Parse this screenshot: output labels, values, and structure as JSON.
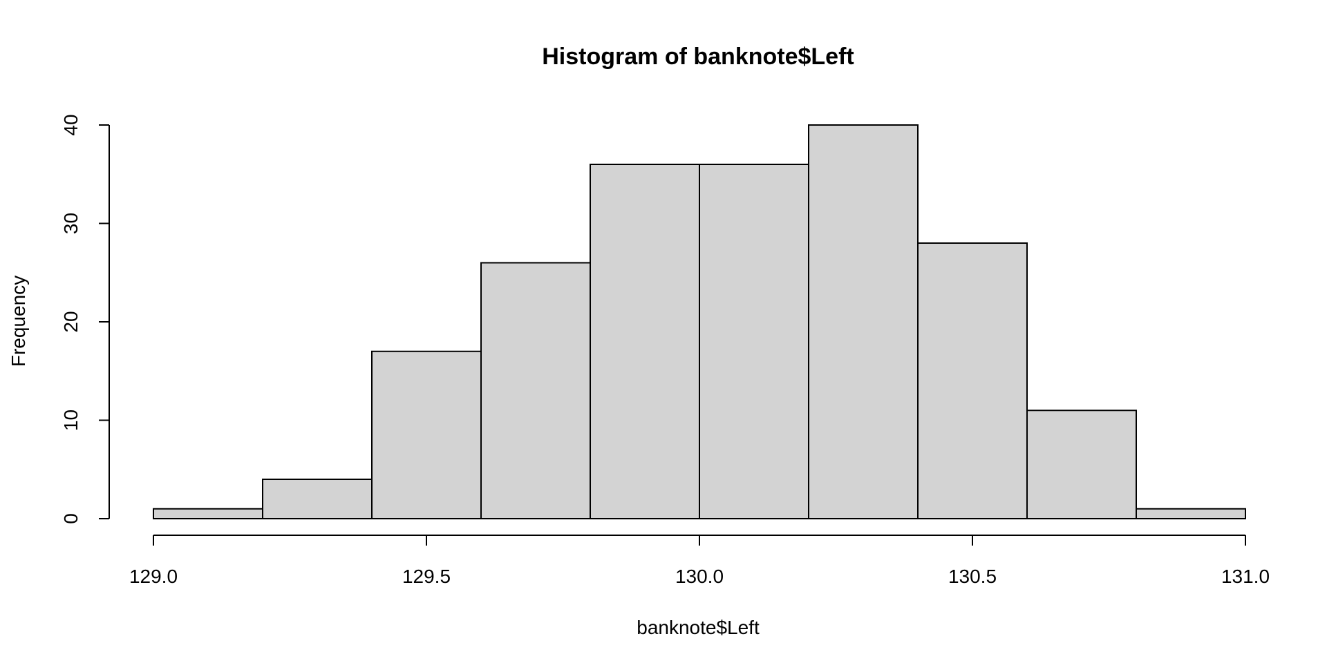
{
  "chart_data": {
    "type": "bar",
    "title": "Histogram of banknote$Left",
    "xlabel": "banknote$Left",
    "ylabel": "Frequency",
    "bins": [
      {
        "start": 129.0,
        "end": 129.2,
        "value": 1
      },
      {
        "start": 129.2,
        "end": 129.4,
        "value": 4
      },
      {
        "start": 129.4,
        "end": 129.6,
        "value": 17
      },
      {
        "start": 129.6,
        "end": 129.8,
        "value": 26
      },
      {
        "start": 129.8,
        "end": 130.0,
        "value": 36
      },
      {
        "start": 130.0,
        "end": 130.2,
        "value": 36
      },
      {
        "start": 130.2,
        "end": 130.4,
        "value": 40
      },
      {
        "start": 130.4,
        "end": 130.6,
        "value": 28
      },
      {
        "start": 130.6,
        "end": 130.8,
        "value": 11
      },
      {
        "start": 130.8,
        "end": 131.0,
        "value": 1
      }
    ],
    "xlim": [
      129.0,
      131.0
    ],
    "ylim": [
      0,
      40
    ],
    "x_ticks": [
      "129.0",
      "129.5",
      "130.0",
      "130.5",
      "131.0"
    ],
    "y_ticks": [
      "0",
      "10",
      "20",
      "30",
      "40"
    ],
    "bar_color": "#d3d3d3",
    "grid": false,
    "legend": "none"
  }
}
